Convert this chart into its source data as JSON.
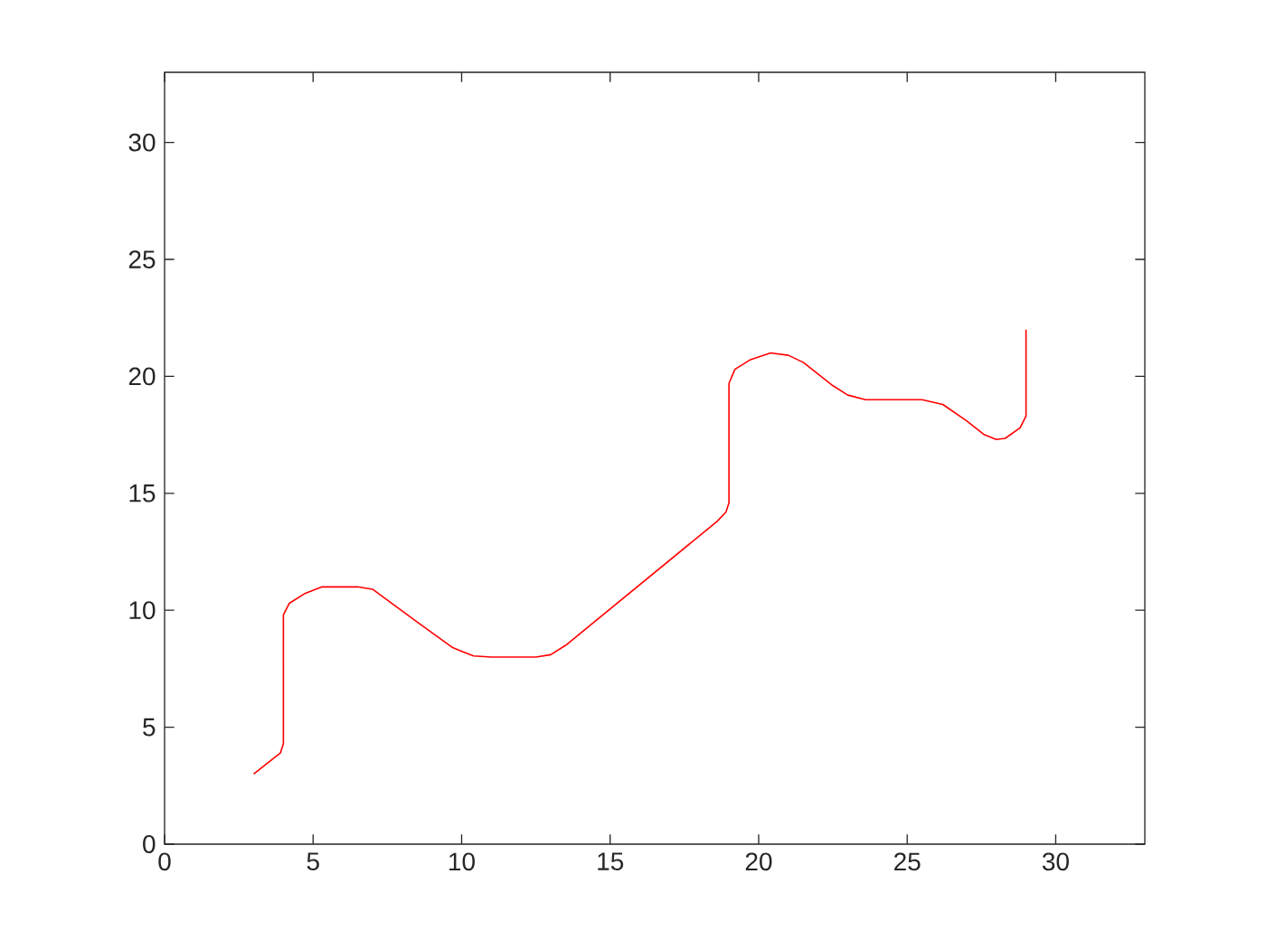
{
  "chart_data": {
    "type": "line",
    "x": [
      3,
      3.5,
      3.9,
      4,
      4,
      4.2,
      4.7,
      5.3,
      6.5,
      7,
      8.5,
      9.7,
      10.4,
      11,
      12.5,
      13,
      13.5,
      18.6,
      18.9,
      19,
      19,
      19.2,
      19.7,
      20.4,
      21,
      21.5,
      22.5,
      23,
      23.6,
      25.5,
      26.2,
      27,
      27.6,
      28,
      28.3,
      28.8,
      29,
      29
    ],
    "series": [
      {
        "color": "#ff0000",
        "values": [
          3,
          3.5,
          3.9,
          4.3,
          9.8,
          10.3,
          10.7,
          11,
          11,
          10.9,
          9.5,
          8.4,
          8.05,
          8,
          8,
          8.1,
          8.5,
          13.8,
          14.2,
          14.6,
          19.7,
          20.3,
          20.7,
          21,
          20.9,
          20.6,
          19.6,
          19.2,
          19,
          19,
          18.8,
          18.1,
          17.5,
          17.3,
          17.35,
          17.8,
          18.3,
          22
        ]
      }
    ],
    "xlim": [
      0,
      33
    ],
    "ylim": [
      0,
      33
    ],
    "xticks": [
      0,
      5,
      10,
      15,
      20,
      25,
      30
    ],
    "yticks": [
      0,
      5,
      10,
      15,
      20,
      25,
      30
    ]
  }
}
